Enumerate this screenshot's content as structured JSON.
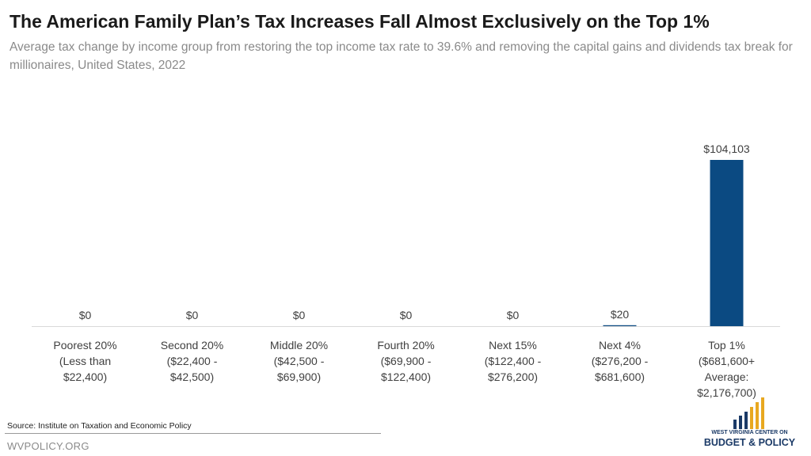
{
  "header": {
    "title": "The American Family Plan’s Tax Increases Fall Almost Exclusively on the Top 1%",
    "subtitle": "Average tax change by income group from restoring the top income tax rate to 39.6% and removing the capital gains and dividends tax break for millionaires, United States, 2022"
  },
  "footer": {
    "source": "Source: Institute on Taxation and Economic Policy",
    "site": "WVPOLICY.ORG"
  },
  "logo": {
    "line1": "WEST VIRGINIA CENTER ON",
    "line2": "BUDGET & POLICY"
  },
  "colors": {
    "bar": "#0b4a82",
    "axis": "#d9d9d9",
    "label": "#404040",
    "logo_navy": "#1b3a67",
    "logo_gold": "#e8a820"
  },
  "chart_data": {
    "type": "bar",
    "title": "The American Family Plan’s Tax Increases Fall Almost Exclusively on the Top 1%",
    "categories": [
      [
        "Poorest 20%",
        "(Less than",
        "$22,400)"
      ],
      [
        "Second 20%",
        "($22,400 -",
        "$42,500)"
      ],
      [
        "Middle 20%",
        "($42,500 -",
        "$69,900)"
      ],
      [
        "Fourth 20%",
        "($69,900 -",
        "$122,400)"
      ],
      [
        "Next 15%",
        "($122,400 -",
        "$276,200)"
      ],
      [
        "Next 4%",
        "($276,200 -",
        "$681,600)"
      ],
      [
        "Top 1%",
        "($681,600+",
        "Average:",
        "$2,176,700)"
      ]
    ],
    "values": [
      0,
      0,
      0,
      0,
      0,
      20,
      104103
    ],
    "data_labels": [
      "$0",
      "$0",
      "$0",
      "$0",
      "$0",
      "$20",
      "$104,103"
    ],
    "ylim": [
      0,
      104103
    ],
    "grid": false,
    "legend": "none"
  }
}
